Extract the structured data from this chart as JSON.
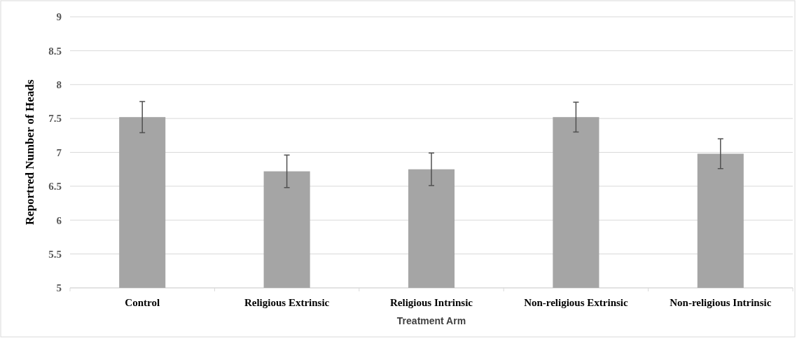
{
  "chart_data": {
    "type": "bar",
    "xlabel": "Treatment Arm",
    "ylabel": "Reportred Number of Heads",
    "categories": [
      "Control",
      "Religious Extrinsic",
      "Religious Intrinsic",
      "Non-religious Extrinsic",
      "Non-religious Intrinsic"
    ],
    "values": [
      7.52,
      6.72,
      6.75,
      7.52,
      6.98
    ],
    "errors": [
      0.23,
      0.24,
      0.24,
      0.22,
      0.22
    ],
    "color": "#a5a5a5",
    "ylim": [
      5,
      9
    ],
    "yticks": [
      5,
      5.5,
      6,
      6.5,
      7,
      7.5,
      8,
      8.5,
      9
    ],
    "grid": "y"
  }
}
